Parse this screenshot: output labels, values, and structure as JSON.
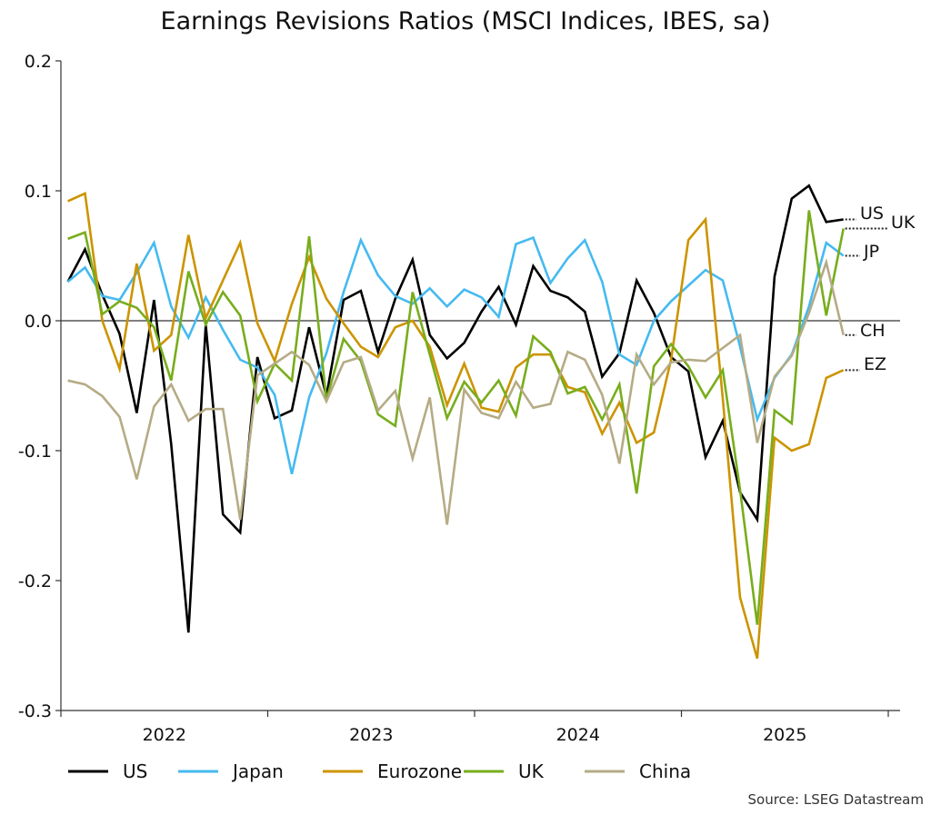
{
  "chart_data": {
    "type": "line",
    "title": "Earnings Revisions Ratios (MSCI Indices, IBES, sa)",
    "source": "Source: LSEG Datastream",
    "ylim": [
      -0.3,
      0.2
    ],
    "yticks": [
      "0.2",
      "0.1",
      "0.0",
      "-0.1",
      "-0.2",
      "-0.3"
    ],
    "ytick_values": [
      0.2,
      0.1,
      0.0,
      -0.1,
      -0.2,
      -0.3
    ],
    "xlim": [
      "2022-01",
      "2026-01"
    ],
    "xtick_labels": [
      "2022",
      "2023",
      "2024",
      "2025"
    ],
    "grid": false,
    "zero_line": true,
    "legend_placement": "bottom",
    "x": [
      "2022-01",
      "2022-02",
      "2022-03",
      "2022-04",
      "2022-05",
      "2022-06",
      "2022-07",
      "2022-08",
      "2022-09",
      "2022-10",
      "2022-11",
      "2022-12",
      "2023-01",
      "2023-02",
      "2023-03",
      "2023-04",
      "2023-05",
      "2023-06",
      "2023-07",
      "2023-08",
      "2023-09",
      "2023-10",
      "2023-11",
      "2023-12",
      "2024-01",
      "2024-02",
      "2024-03",
      "2024-04",
      "2024-05",
      "2024-06",
      "2024-07",
      "2024-08",
      "2024-09",
      "2024-10",
      "2024-11",
      "2024-12",
      "2025-01",
      "2025-02",
      "2025-03",
      "2025-04",
      "2025-05",
      "2025-06",
      "2025-07",
      "2025-08",
      "2025-09",
      "2025-10"
    ],
    "series": [
      {
        "name": "US",
        "end_label": "US",
        "color": "#000000",
        "values": [
          0.03,
          0.055,
          0.02,
          -0.01,
          -0.071,
          0.016,
          -0.095,
          -0.24,
          -0.003,
          -0.149,
          -0.163,
          -0.028,
          -0.075,
          -0.069,
          -0.005,
          -0.058,
          0.016,
          0.023,
          -0.024,
          0.017,
          0.047,
          -0.011,
          -0.029,
          -0.017,
          0.007,
          0.026,
          -0.003,
          0.042,
          0.023,
          0.018,
          0.007,
          -0.043,
          -0.025,
          0.031,
          0.006,
          -0.028,
          -0.039,
          -0.105,
          -0.077,
          -0.132,
          -0.153,
          0.034,
          0.094,
          0.104,
          0.076,
          0.078
        ]
      },
      {
        "name": "Japan",
        "end_label": "JP",
        "color": "#45baf0",
        "values": [
          0.03,
          0.041,
          0.019,
          0.016,
          0.037,
          0.06,
          0.011,
          -0.013,
          0.018,
          -0.007,
          -0.03,
          -0.036,
          -0.057,
          -0.118,
          -0.059,
          -0.025,
          0.022,
          0.062,
          0.035,
          0.019,
          0.013,
          0.025,
          0.011,
          0.024,
          0.018,
          0.003,
          0.059,
          0.064,
          0.029,
          0.048,
          0.062,
          0.03,
          -0.026,
          -0.034,
          0.0,
          0.015,
          0.027,
          0.039,
          0.031,
          -0.02,
          -0.076,
          -0.044,
          -0.026,
          0.011,
          0.06,
          0.05
        ]
      },
      {
        "name": "Eurozone",
        "end_label": "EZ",
        "color": "#cc9400",
        "values": [
          0.092,
          0.098,
          0.0,
          -0.037,
          0.044,
          -0.023,
          -0.011,
          0.066,
          0.002,
          0.031,
          0.06,
          -0.002,
          -0.031,
          0.013,
          0.049,
          0.017,
          -0.002,
          -0.02,
          -0.028,
          -0.005,
          0.0,
          -0.02,
          -0.065,
          -0.033,
          -0.067,
          -0.07,
          -0.036,
          -0.026,
          -0.026,
          -0.051,
          -0.055,
          -0.087,
          -0.063,
          -0.094,
          -0.086,
          -0.03,
          0.062,
          0.078,
          -0.06,
          -0.213,
          -0.26,
          -0.09,
          -0.1,
          -0.095,
          -0.044,
          -0.038
        ]
      },
      {
        "name": "UK",
        "end_label": "UK",
        "color": "#78ad1c",
        "values": [
          0.063,
          0.068,
          0.005,
          0.015,
          0.01,
          -0.005,
          -0.046,
          0.038,
          -0.003,
          0.022,
          0.004,
          -0.062,
          -0.033,
          -0.046,
          0.065,
          -0.061,
          -0.014,
          -0.031,
          -0.072,
          -0.081,
          0.022,
          -0.026,
          -0.075,
          -0.047,
          -0.063,
          -0.046,
          -0.073,
          -0.012,
          -0.024,
          -0.056,
          -0.051,
          -0.076,
          -0.049,
          -0.133,
          -0.035,
          -0.018,
          -0.035,
          -0.059,
          -0.038,
          -0.13,
          -0.234,
          -0.069,
          -0.079,
          0.085,
          0.004,
          0.071
        ]
      },
      {
        "name": "China",
        "end_label": "CH",
        "color": "#b5ab85",
        "values": [
          -0.046,
          -0.049,
          -0.058,
          -0.074,
          -0.122,
          -0.066,
          -0.049,
          -0.077,
          -0.068,
          -0.068,
          -0.153,
          -0.042,
          -0.033,
          -0.024,
          -0.034,
          -0.062,
          -0.032,
          -0.028,
          -0.069,
          -0.054,
          -0.106,
          -0.059,
          -0.157,
          -0.053,
          -0.071,
          -0.075,
          -0.047,
          -0.067,
          -0.064,
          -0.024,
          -0.03,
          -0.057,
          -0.11,
          -0.026,
          -0.049,
          -0.032,
          -0.03,
          -0.031,
          -0.021,
          -0.011,
          -0.094,
          -0.043,
          -0.027,
          0.006,
          0.045,
          -0.011
        ]
      }
    ]
  }
}
